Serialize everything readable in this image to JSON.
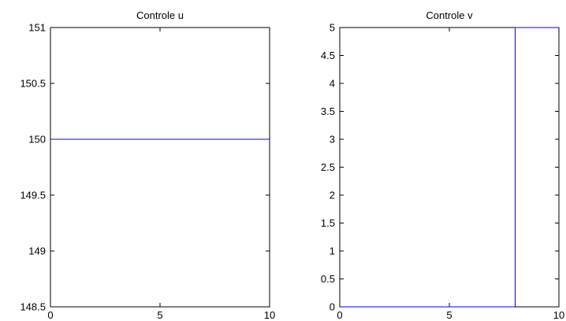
{
  "chart_data": [
    {
      "type": "line",
      "title": "Controle u",
      "xlabel": "",
      "ylabel": "",
      "xlim": [
        0,
        10
      ],
      "ylim": [
        148.5,
        151
      ],
      "xticks": [
        0,
        5,
        10
      ],
      "yticks": [
        148.5,
        149,
        149.5,
        150,
        150.5,
        151
      ],
      "xtick_labels": [
        "0",
        "5",
        "10"
      ],
      "ytick_labels": [
        "148.5",
        "149",
        "149.5",
        "150",
        "150.5",
        "151"
      ],
      "grid": false,
      "series": [
        {
          "x": [
            0,
            10
          ],
          "y": [
            150,
            150
          ],
          "color": "#0000ff"
        }
      ]
    },
    {
      "type": "line",
      "title": "Controle v",
      "xlabel": "",
      "ylabel": "",
      "xlim": [
        0,
        10
      ],
      "ylim": [
        0,
        5
      ],
      "xticks": [
        0,
        5,
        10
      ],
      "yticks": [
        0,
        0.5,
        1,
        1.5,
        2,
        2.5,
        3,
        3.5,
        4,
        4.5,
        5
      ],
      "xtick_labels": [
        "0",
        "5",
        "10"
      ],
      "ytick_labels": [
        "0",
        "0.5",
        "1",
        "1.5",
        "2",
        "2.5",
        "3",
        "3.5",
        "4",
        "4.5",
        "5"
      ],
      "grid": false,
      "series": [
        {
          "x": [
            0,
            8.0,
            8.0,
            10
          ],
          "y": [
            0,
            0,
            5,
            5
          ],
          "color": "#0000ff"
        }
      ]
    }
  ]
}
